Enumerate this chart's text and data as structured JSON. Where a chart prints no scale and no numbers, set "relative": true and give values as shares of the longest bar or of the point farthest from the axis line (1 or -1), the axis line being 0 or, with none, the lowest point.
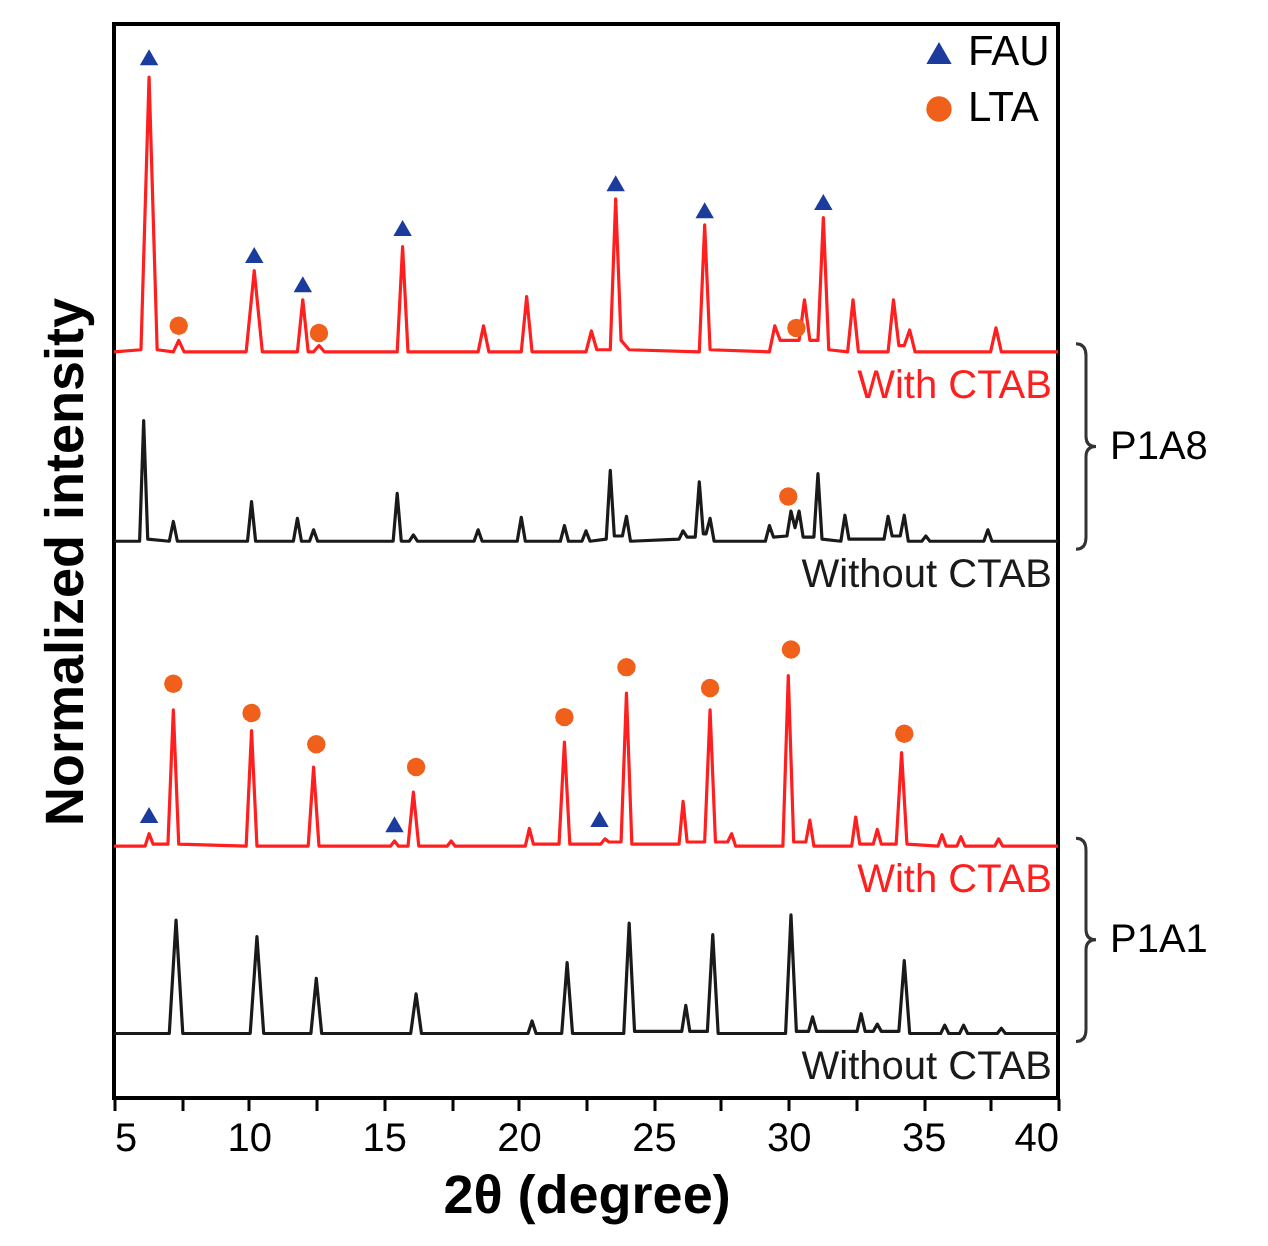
{
  "chart_data": {
    "type": "line",
    "relative": true,
    "xlabel": "2θ (degree)",
    "ylabel": "Normalized intensity",
    "xlim": [
      5,
      40
    ],
    "xticks": [
      5,
      {
        "value": 7.5,
        "label": null
      },
      10,
      {
        "value": 12.5,
        "label": null
      },
      15,
      {
        "value": 17.5,
        "label": null
      },
      20,
      {
        "value": 22.5,
        "label": null
      },
      25,
      {
        "value": 27.5,
        "label": null
      },
      30,
      {
        "value": 32.5,
        "label": null
      },
      35,
      {
        "value": 37.5,
        "label": null
      },
      40
    ],
    "legend": "top right",
    "line_style": "solid",
    "annotations": [
      "P1A8",
      "P1A1"
    ],
    "series": [
      {
        "name": "With CTAB",
        "color": "#ff1f1f",
        "x": [
          5,
          6.0,
          6.3,
          6.6,
          7.2,
          7.4,
          7.6,
          9.9,
          10.2,
          10.5,
          11.8,
          12.0,
          12.2,
          12.4,
          12.6,
          12.8,
          15.5,
          15.7,
          15.9,
          18.5,
          18.7,
          18.9,
          20.1,
          20.3,
          20.5,
          22.5,
          22.7,
          22.9,
          23.4,
          23.6,
          23.8,
          24.1,
          26.7,
          26.9,
          27.1,
          29.3,
          29.5,
          29.7,
          30.4,
          30.6,
          30.8,
          31.1,
          31.3,
          31.5,
          32.2,
          32.4,
          32.6,
          33.7,
          33.9,
          34.1,
          34.3,
          34.5,
          34.7,
          37.5,
          37.7,
          37.9,
          40
        ],
        "values": [
          0.717,
          0.719,
          0.981,
          0.719,
          0.717,
          0.728,
          0.717,
          0.717,
          0.795,
          0.717,
          0.717,
          0.767,
          0.717,
          0.717,
          0.723,
          0.717,
          0.717,
          0.818,
          0.717,
          0.717,
          0.742,
          0.717,
          0.717,
          0.77,
          0.717,
          0.717,
          0.737,
          0.719,
          0.719,
          0.864,
          0.728,
          0.719,
          0.717,
          0.839,
          0.719,
          0.717,
          0.742,
          0.728,
          0.728,
          0.767,
          0.728,
          0.728,
          0.846,
          0.719,
          0.717,
          0.767,
          0.717,
          0.717,
          0.767,
          0.723,
          0.723,
          0.738,
          0.717,
          0.717,
          0.74,
          0.717,
          0.717
        ]
      },
      {
        "name": "Without CTAB",
        "color": "#1a1a1a",
        "x": [
          5,
          5.95,
          6.1,
          6.25,
          7.05,
          7.2,
          7.35,
          9.95,
          10.1,
          10.25,
          11.65,
          11.8,
          11.95,
          12.25,
          12.4,
          12.55,
          15.35,
          15.5,
          15.65,
          15.95,
          16.1,
          16.25,
          18.35,
          18.5,
          18.65,
          19.95,
          20.1,
          20.25,
          21.55,
          21.7,
          21.85,
          22.35,
          22.5,
          22.65,
          23.25,
          23.4,
          23.55,
          23.85,
          24.0,
          24.15,
          25.95,
          26.1,
          26.25,
          26.55,
          26.7,
          26.85,
          26.95,
          27.1,
          27.25,
          29.15,
          29.3,
          29.45,
          29.95,
          30.1,
          30.25,
          30.4,
          30.55,
          30.95,
          31.1,
          31.25,
          31.95,
          32.1,
          32.25,
          33.55,
          33.7,
          33.85,
          34.15,
          34.3,
          34.45,
          34.95,
          35.1,
          35.25,
          37.25,
          37.4,
          37.55,
          40
        ],
        "values": [
          0.535,
          0.535,
          0.651,
          0.537,
          0.535,
          0.554,
          0.535,
          0.535,
          0.573,
          0.535,
          0.535,
          0.557,
          0.535,
          0.535,
          0.546,
          0.535,
          0.535,
          0.581,
          0.535,
          0.535,
          0.541,
          0.535,
          0.535,
          0.546,
          0.535,
          0.535,
          0.558,
          0.535,
          0.535,
          0.55,
          0.535,
          0.535,
          0.545,
          0.535,
          0.537,
          0.603,
          0.54,
          0.54,
          0.559,
          0.535,
          0.537,
          0.545,
          0.539,
          0.539,
          0.592,
          0.542,
          0.542,
          0.557,
          0.535,
          0.535,
          0.55,
          0.539,
          0.54,
          0.564,
          0.548,
          0.564,
          0.539,
          0.539,
          0.6,
          0.537,
          0.535,
          0.56,
          0.537,
          0.537,
          0.559,
          0.54,
          0.54,
          0.56,
          0.535,
          0.535,
          0.54,
          0.535,
          0.535,
          0.546,
          0.535,
          0.535
        ]
      },
      {
        "name": "With CTAB",
        "color": "#ff1f1f",
        "x": [
          5,
          6.15,
          6.3,
          6.45,
          7.0,
          7.2,
          7.4,
          9.9,
          10.1,
          10.3,
          12.2,
          12.4,
          12.6,
          15.25,
          15.4,
          15.55,
          15.9,
          16.1,
          16.3,
          17.35,
          17.5,
          17.65,
          20.25,
          20.4,
          20.55,
          21.5,
          21.7,
          21.9,
          23.05,
          23.2,
          23.35,
          23.8,
          24.0,
          24.2,
          25.95,
          26.1,
          26.25,
          26.9,
          27.1,
          27.3,
          27.75,
          27.9,
          28.05,
          29.8,
          30.0,
          30.2,
          30.65,
          30.8,
          30.95,
          32.35,
          32.5,
          32.65,
          33.15,
          33.3,
          33.45,
          34.0,
          34.2,
          34.4,
          35.55,
          35.7,
          35.85,
          36.25,
          36.4,
          36.55,
          37.65,
          37.8,
          37.95,
          40
        ],
        "values": [
          0.242,
          0.242,
          0.254,
          0.244,
          0.244,
          0.373,
          0.244,
          0.242,
          0.353,
          0.242,
          0.242,
          0.318,
          0.242,
          0.242,
          0.247,
          0.242,
          0.242,
          0.294,
          0.242,
          0.242,
          0.247,
          0.242,
          0.242,
          0.259,
          0.244,
          0.244,
          0.342,
          0.244,
          0.244,
          0.249,
          0.246,
          0.246,
          0.389,
          0.244,
          0.244,
          0.285,
          0.246,
          0.246,
          0.373,
          0.246,
          0.246,
          0.254,
          0.242,
          0.242,
          0.406,
          0.246,
          0.246,
          0.267,
          0.242,
          0.242,
          0.27,
          0.244,
          0.244,
          0.258,
          0.244,
          0.244,
          0.332,
          0.244,
          0.242,
          0.253,
          0.242,
          0.242,
          0.251,
          0.242,
          0.242,
          0.249,
          0.242,
          0.242
        ]
      },
      {
        "name": "Without CTAB",
        "color": "#1a1a1a",
        "x": [
          5,
          7.05,
          7.3,
          7.55,
          10.05,
          10.3,
          10.55,
          12.3,
          12.5,
          12.7,
          16.0,
          16.2,
          16.4,
          20.35,
          20.5,
          20.65,
          21.6,
          21.8,
          22.0,
          23.9,
          24.1,
          24.3,
          26.05,
          26.2,
          26.35,
          27.0,
          27.2,
          27.4,
          29.9,
          30.1,
          30.3,
          30.75,
          30.9,
          31.05,
          32.55,
          32.7,
          32.85,
          33.15,
          33.3,
          33.45,
          34.1,
          34.3,
          34.5,
          35.65,
          35.8,
          35.95,
          36.35,
          36.5,
          36.65,
          37.75,
          37.9,
          38.05,
          40
        ],
        "values": [
          0.062,
          0.062,
          0.171,
          0.062,
          0.062,
          0.155,
          0.062,
          0.062,
          0.115,
          0.062,
          0.062,
          0.1,
          0.062,
          0.062,
          0.074,
          0.062,
          0.062,
          0.13,
          0.062,
          0.062,
          0.168,
          0.064,
          0.064,
          0.089,
          0.064,
          0.064,
          0.157,
          0.062,
          0.062,
          0.176,
          0.064,
          0.064,
          0.078,
          0.064,
          0.064,
          0.081,
          0.064,
          0.064,
          0.071,
          0.064,
          0.064,
          0.132,
          0.062,
          0.062,
          0.07,
          0.062,
          0.062,
          0.07,
          0.062,
          0.062,
          0.067,
          0.062,
          0.062
        ]
      },
      {
        "name": "FAU",
        "type": "scatter",
        "marker": "triangle",
        "color": "#1b3c9c",
        "x": [
          6.3,
          10.2,
          12.0,
          15.7,
          23.6,
          26.9,
          31.3,
          6.3,
          15.4,
          23.0
        ],
        "values": [
          1.0,
          0.81,
          0.782,
          0.836,
          0.879,
          0.853,
          0.861,
          0.272,
          0.263,
          0.268
        ]
      },
      {
        "name": "LTA",
        "type": "scatter",
        "marker": "circle",
        "color": "#f0601a",
        "x": [
          7.4,
          12.6,
          30.3,
          30.0,
          7.2,
          10.1,
          12.5,
          16.2,
          21.7,
          24.0,
          27.1,
          30.1,
          34.3
        ],
        "values": [
          0.742,
          0.735,
          0.74,
          0.578,
          0.398,
          0.37,
          0.34,
          0.318,
          0.366,
          0.414,
          0.394,
          0.431,
          0.35
        ]
      }
    ]
  }
}
